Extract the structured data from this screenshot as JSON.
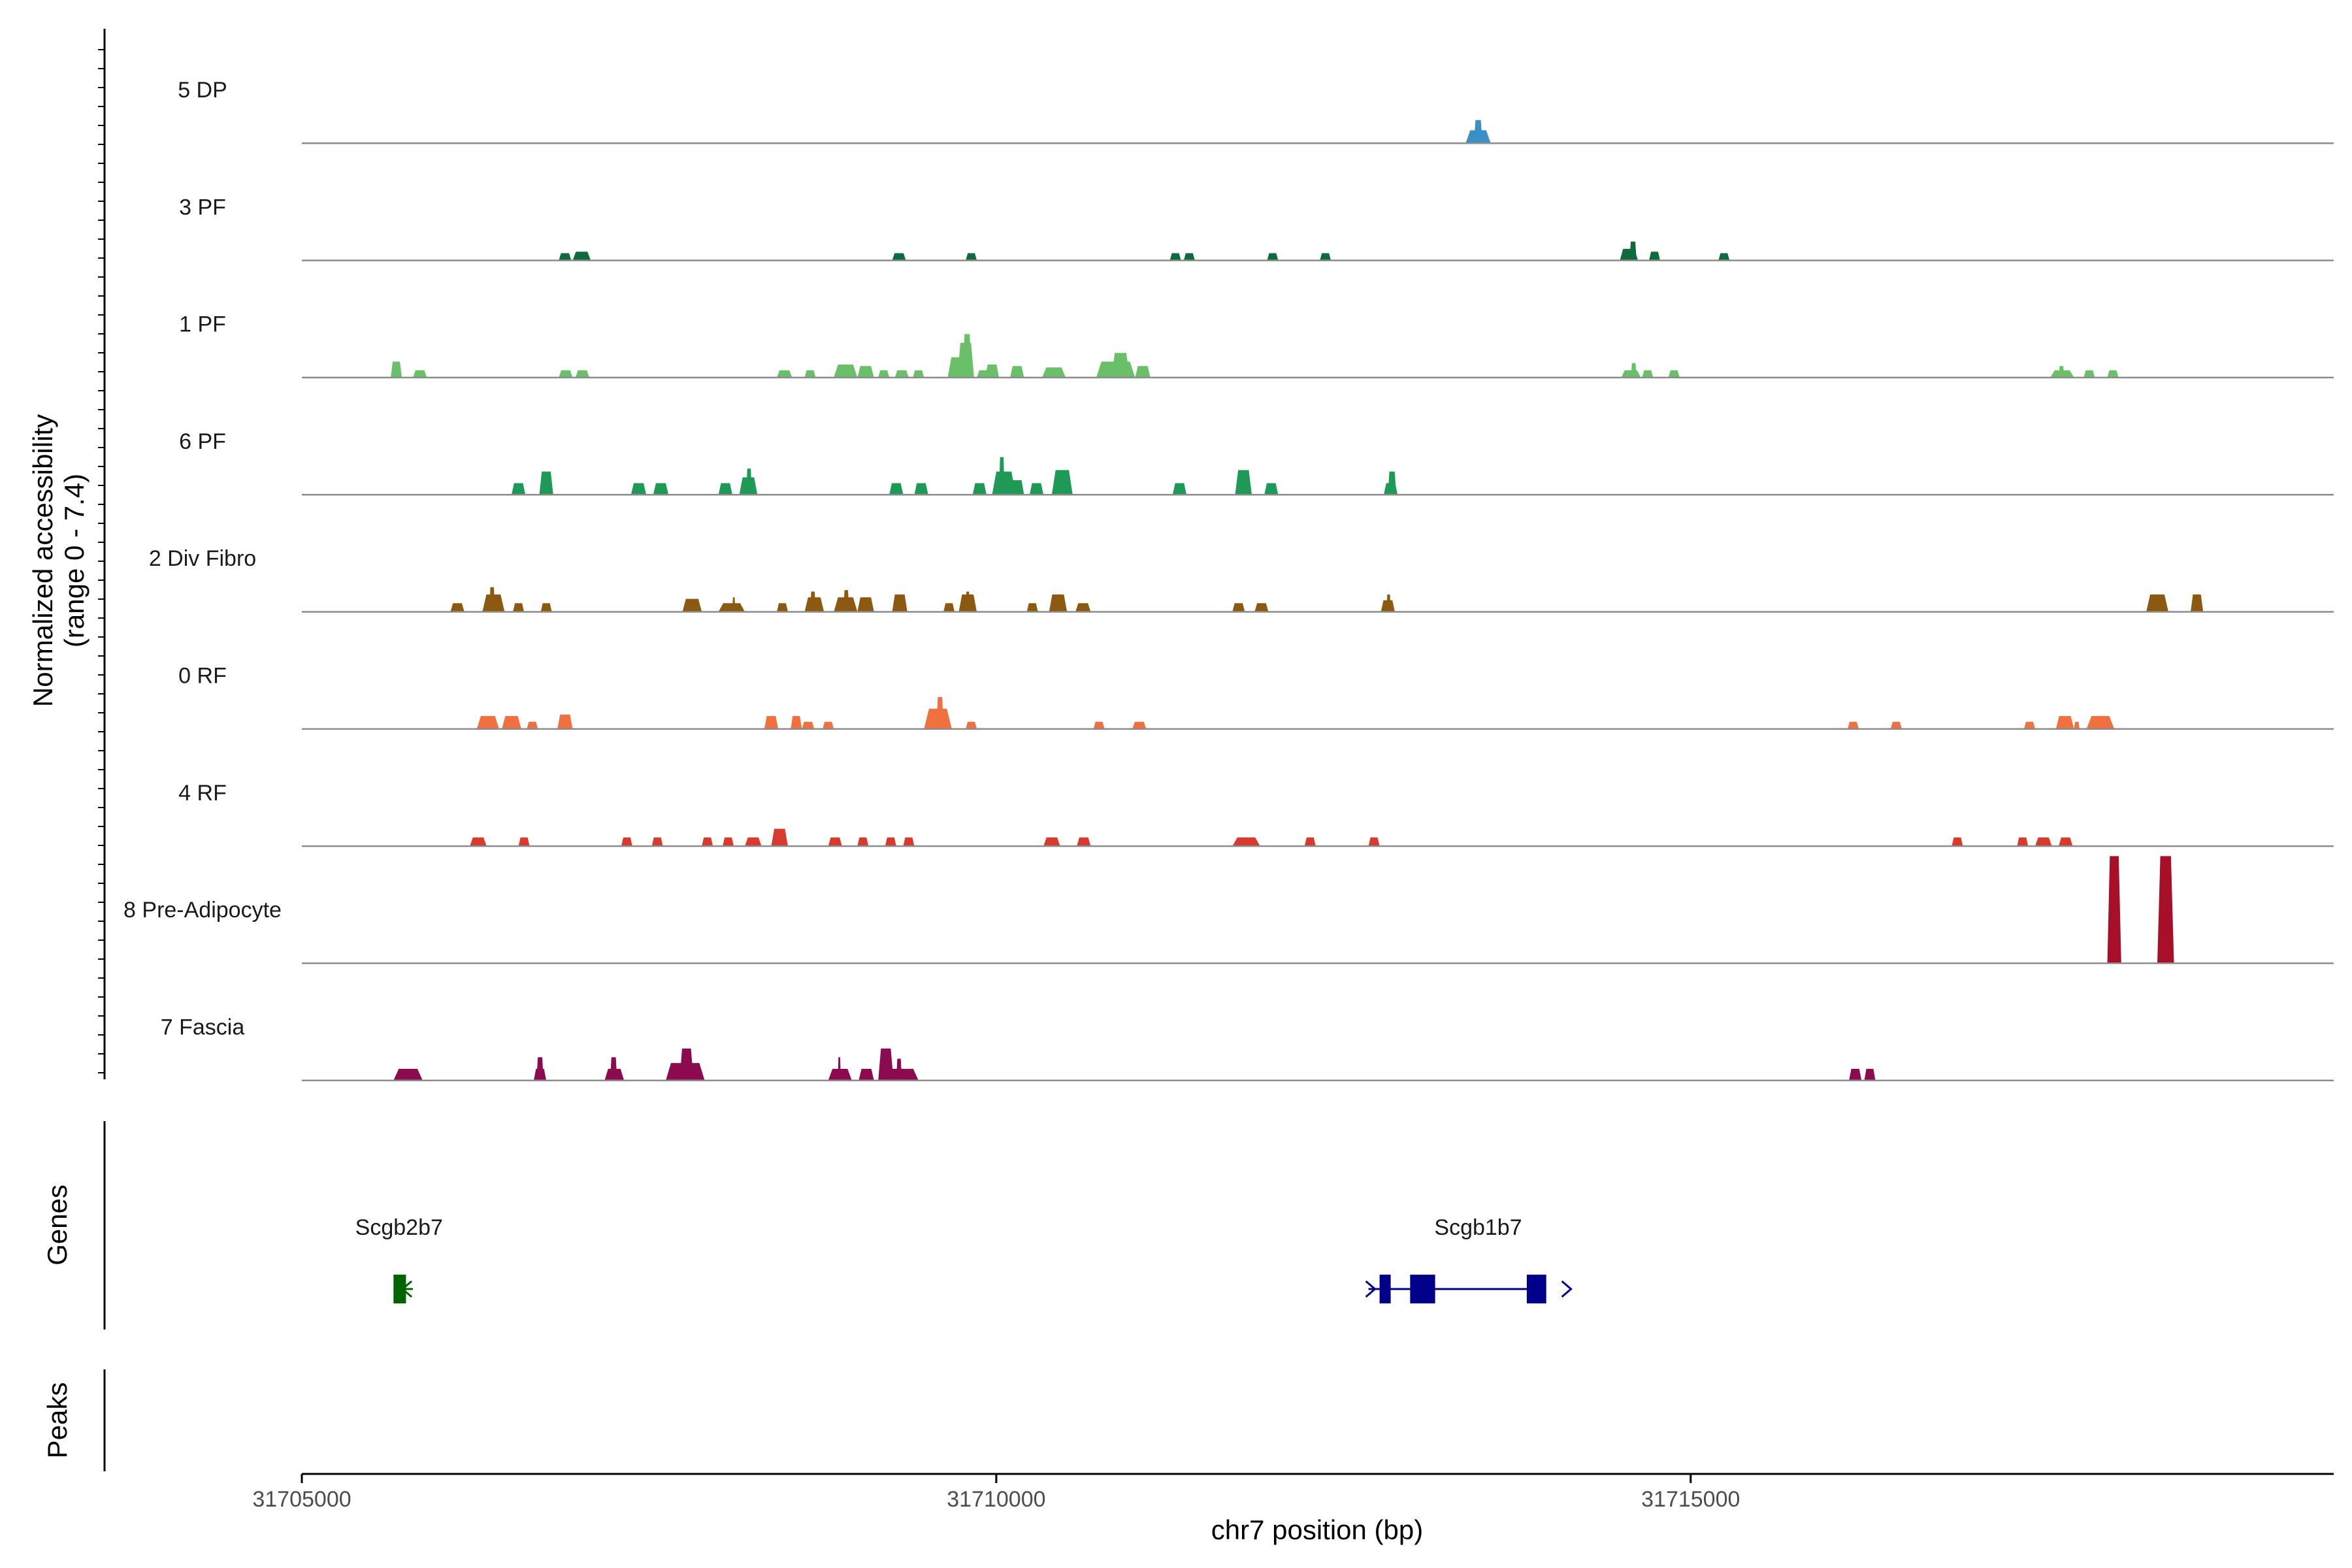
{
  "chart_data": {
    "type": "area",
    "title": "",
    "xlabel": "chr7 position (bp)",
    "ylabel": "Normalized accessibility",
    "ylabel_sub": "(range 0 - 7.4)",
    "ylim": [
      0,
      7.4
    ],
    "xlim": [
      31705000,
      31719630
    ],
    "xticks": [
      {
        "value": 31705000,
        "label": "31705000"
      },
      {
        "value": 31710000,
        "label": "31710000"
      },
      {
        "value": 31715000,
        "label": "31715000"
      }
    ],
    "tracks": [
      {
        "name": "5 DP",
        "color": "#3a8fc4",
        "peaks": [
          [
            31713380,
            31713560,
            0.9
          ],
          [
            31713440,
            31713500,
            1.6
          ]
        ]
      },
      {
        "name": "3 PF",
        "color": "#0f6b3c",
        "peaks": [
          [
            31706850,
            31706940,
            0.5
          ],
          [
            31706950,
            31707080,
            0.6
          ],
          [
            31709250,
            31709350,
            0.5
          ],
          [
            31709780,
            31709860,
            0.5
          ],
          [
            31711250,
            31711330,
            0.5
          ],
          [
            31711350,
            31711430,
            0.5
          ],
          [
            31711950,
            31712030,
            0.5
          ],
          [
            31712330,
            31712410,
            0.5
          ],
          [
            31714490,
            31714620,
            0.8
          ],
          [
            31714560,
            31714610,
            1.3
          ],
          [
            31714700,
            31714780,
            0.6
          ],
          [
            31715200,
            31715280,
            0.5
          ]
        ]
      },
      {
        "name": "1 PF",
        "color": "#6abf69",
        "peaks": [
          [
            31705640,
            31705720,
            1.1
          ],
          [
            31705800,
            31705900,
            0.5
          ],
          [
            31706850,
            31706950,
            0.5
          ],
          [
            31706970,
            31707070,
            0.5
          ],
          [
            31708420,
            31708530,
            0.5
          ],
          [
            31708620,
            31708700,
            0.5
          ],
          [
            31708830,
            31709000,
            0.9
          ],
          [
            31709000,
            31709120,
            0.8
          ],
          [
            31709150,
            31709230,
            0.5
          ],
          [
            31709270,
            31709370,
            0.5
          ],
          [
            31709400,
            31709480,
            0.5
          ],
          [
            31709650,
            31709800,
            1.4
          ],
          [
            31709720,
            31709840,
            2.4
          ],
          [
            31709760,
            31709820,
            3.0
          ],
          [
            31709860,
            31709960,
            0.5
          ],
          [
            31709920,
            31710020,
            0.9
          ],
          [
            31710100,
            31710200,
            0.8
          ],
          [
            31710330,
            31710500,
            0.7
          ],
          [
            31710720,
            31711000,
            1.1
          ],
          [
            31710830,
            31710960,
            1.7
          ],
          [
            31711000,
            31711110,
            0.8
          ],
          [
            31714500,
            31714640,
            0.5
          ],
          [
            31714570,
            31714610,
            1.0
          ],
          [
            31714650,
            31714730,
            0.5
          ],
          [
            31714840,
            31714920,
            0.5
          ],
          [
            31717590,
            31717760,
            0.5
          ],
          [
            31717650,
            31717690,
            0.8
          ],
          [
            31717830,
            31717910,
            0.5
          ],
          [
            31718000,
            31718080,
            0.5
          ]
        ]
      },
      {
        "name": "6 PF",
        "color": "#1e9a56",
        "peaks": [
          [
            31706510,
            31706610,
            0.8
          ],
          [
            31706710,
            31706810,
            1.6
          ],
          [
            31707370,
            31707480,
            0.8
          ],
          [
            31707530,
            31707640,
            0.8
          ],
          [
            31708000,
            31708100,
            0.8
          ],
          [
            31708150,
            31708280,
            1.2
          ],
          [
            31708200,
            31708240,
            1.8
          ],
          [
            31709230,
            31709330,
            0.8
          ],
          [
            31709410,
            31709510,
            0.8
          ],
          [
            31709830,
            31709930,
            0.8
          ],
          [
            31709970,
            31710140,
            1.6
          ],
          [
            31710020,
            31710060,
            2.6
          ],
          [
            31710100,
            31710200,
            1.0
          ],
          [
            31710240,
            31710340,
            0.8
          ],
          [
            31710400,
            31710550,
            1.7
          ],
          [
            31711270,
            31711370,
            0.8
          ],
          [
            31711720,
            31711840,
            1.7
          ],
          [
            31711930,
            31712030,
            0.8
          ],
          [
            31712790,
            31712890,
            0.8
          ],
          [
            31712820,
            31712880,
            1.6
          ]
        ]
      },
      {
        "name": "2 Div Fibro",
        "color": "#8b5a10",
        "peaks": [
          [
            31706070,
            31706170,
            0.6
          ],
          [
            31706300,
            31706460,
            1.2
          ],
          [
            31706350,
            31706390,
            1.7
          ],
          [
            31706520,
            31706600,
            0.6
          ],
          [
            31706720,
            31706800,
            0.6
          ],
          [
            31707740,
            31707880,
            0.9
          ],
          [
            31708000,
            31708190,
            0.6
          ],
          [
            31708100,
            31708120,
            1.0
          ],
          [
            31708420,
            31708500,
            0.6
          ],
          [
            31708620,
            31708760,
            1.0
          ],
          [
            31708660,
            31708700,
            1.4
          ],
          [
            31708830,
            31709000,
            1.0
          ],
          [
            31708900,
            31708940,
            1.5
          ],
          [
            31709000,
            31709120,
            1.0
          ],
          [
            31709250,
            31709360,
            1.2
          ],
          [
            31709620,
            31709700,
            0.6
          ],
          [
            31709730,
            31709860,
            1.2
          ],
          [
            31709780,
            31709810,
            1.4
          ],
          [
            31710220,
            31710300,
            0.6
          ],
          [
            31710380,
            31710510,
            1.2
          ],
          [
            31710570,
            31710680,
            0.6
          ],
          [
            31711700,
            31711790,
            0.6
          ],
          [
            31711860,
            31711960,
            0.6
          ],
          [
            31712770,
            31712870,
            0.8
          ],
          [
            31712810,
            31712840,
            1.2
          ],
          [
            31718280,
            31718440,
            1.2
          ],
          [
            31718600,
            31718690,
            1.2
          ]
        ]
      },
      {
        "name": "0 RF",
        "color": "#f07040",
        "peaks": [
          [
            31706260,
            31706420,
            0.9
          ],
          [
            31706440,
            31706580,
            0.9
          ],
          [
            31706620,
            31706700,
            0.5
          ],
          [
            31706840,
            31706950,
            1.0
          ],
          [
            31708330,
            31708430,
            0.9
          ],
          [
            31708520,
            31708600,
            0.9
          ],
          [
            31708600,
            31708690,
            0.5
          ],
          [
            31708750,
            31708830,
            0.5
          ],
          [
            31709480,
            31709680,
            1.4
          ],
          [
            31709570,
            31709620,
            2.2
          ],
          [
            31709780,
            31709860,
            0.5
          ],
          [
            31710700,
            31710780,
            0.5
          ],
          [
            31710980,
            31711080,
            0.5
          ],
          [
            31716130,
            31716210,
            0.5
          ],
          [
            31716440,
            31716520,
            0.5
          ],
          [
            31717400,
            31717480,
            0.5
          ],
          [
            31717630,
            31717760,
            0.9
          ],
          [
            31717760,
            31717800,
            0.5
          ],
          [
            31717850,
            31718050,
            0.9
          ]
        ]
      },
      {
        "name": "4 RF",
        "color": "#d93a2e",
        "peaks": [
          [
            31706210,
            31706330,
            0.6
          ],
          [
            31706560,
            31706640,
            0.6
          ],
          [
            31707300,
            31707380,
            0.6
          ],
          [
            31707520,
            31707600,
            0.6
          ],
          [
            31707880,
            31707960,
            0.6
          ],
          [
            31708030,
            31708110,
            0.6
          ],
          [
            31708190,
            31708310,
            0.6
          ],
          [
            31708380,
            31708500,
            1.2
          ],
          [
            31708790,
            31708890,
            0.6
          ],
          [
            31709000,
            31709080,
            0.6
          ],
          [
            31709200,
            31709280,
            0.6
          ],
          [
            31709330,
            31709410,
            0.6
          ],
          [
            31710340,
            31710460,
            0.6
          ],
          [
            31710580,
            31710680,
            0.6
          ],
          [
            31711700,
            31711900,
            0.6
          ],
          [
            31712220,
            31712300,
            0.6
          ],
          [
            31712680,
            31712760,
            0.6
          ],
          [
            31716880,
            31716960,
            0.6
          ],
          [
            31717350,
            31717430,
            0.6
          ],
          [
            31717480,
            31717600,
            0.6
          ],
          [
            31717650,
            31717750,
            0.6
          ]
        ]
      },
      {
        "name": "8 Pre-Adipocyte",
        "color": "#a8102a",
        "peaks": [
          [
            31718000,
            31718100,
            7.4
          ],
          [
            31718360,
            31718480,
            7.4
          ]
        ]
      },
      {
        "name": "7 Fascia",
        "color": "#8c0a50",
        "peaks": [
          [
            31705660,
            31705870,
            0.8
          ],
          [
            31706670,
            31706760,
            0.8
          ],
          [
            31706690,
            31706740,
            1.6
          ],
          [
            31707180,
            31707320,
            0.8
          ],
          [
            31707220,
            31707270,
            1.6
          ],
          [
            31707620,
            31707900,
            1.2
          ],
          [
            31707720,
            31707820,
            2.2
          ],
          [
            31708790,
            31708960,
            0.8
          ],
          [
            31708860,
            31708880,
            1.6
          ],
          [
            31709010,
            31709120,
            0.8
          ],
          [
            31709150,
            31709440,
            0.8
          ],
          [
            31709150,
            31709260,
            2.2
          ],
          [
            31709280,
            31709320,
            1.5
          ],
          [
            31716140,
            31716230,
            0.8
          ],
          [
            31716250,
            31716330,
            0.8
          ]
        ]
      }
    ],
    "genes_panel_title": "Genes",
    "peaks_panel_title": "Peaks",
    "genes": [
      {
        "name": "Scgb2b7",
        "strand": "-",
        "color": "#006400",
        "label_x": 31705700,
        "start": 31705660,
        "end": 31705800,
        "exons": [
          [
            31705660,
            31705750
          ]
        ]
      },
      {
        "name": "Scgb1b7",
        "strand": "+",
        "color": "#00008b",
        "label_x": 31713470,
        "start": 31712680,
        "end": 31713950,
        "exons": [
          [
            31712760,
            31712840
          ],
          [
            31712980,
            31713160
          ],
          [
            31713820,
            31713960
          ]
        ]
      }
    ]
  }
}
